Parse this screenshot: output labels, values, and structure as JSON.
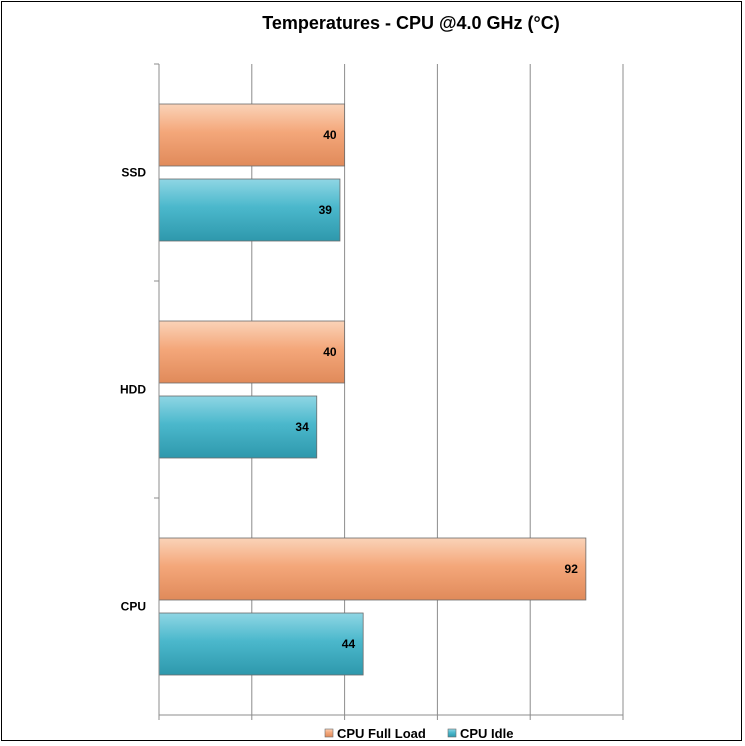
{
  "chart_data": {
    "type": "bar",
    "orientation": "horizontal",
    "title": "Temperatures  - CPU @4.0 GHz (°C)",
    "categories": [
      "CPU",
      "HDD",
      "SSD"
    ],
    "series": [
      {
        "name": "CPU Full Load",
        "values": [
          92,
          40,
          40
        ],
        "color": "#F4A77A"
      },
      {
        "name": "CPU Idle",
        "values": [
          44,
          34,
          39
        ],
        "color": "#4BB8CC"
      }
    ],
    "xlim": [
      0,
      100
    ],
    "grid": true,
    "legend": "bottom"
  }
}
